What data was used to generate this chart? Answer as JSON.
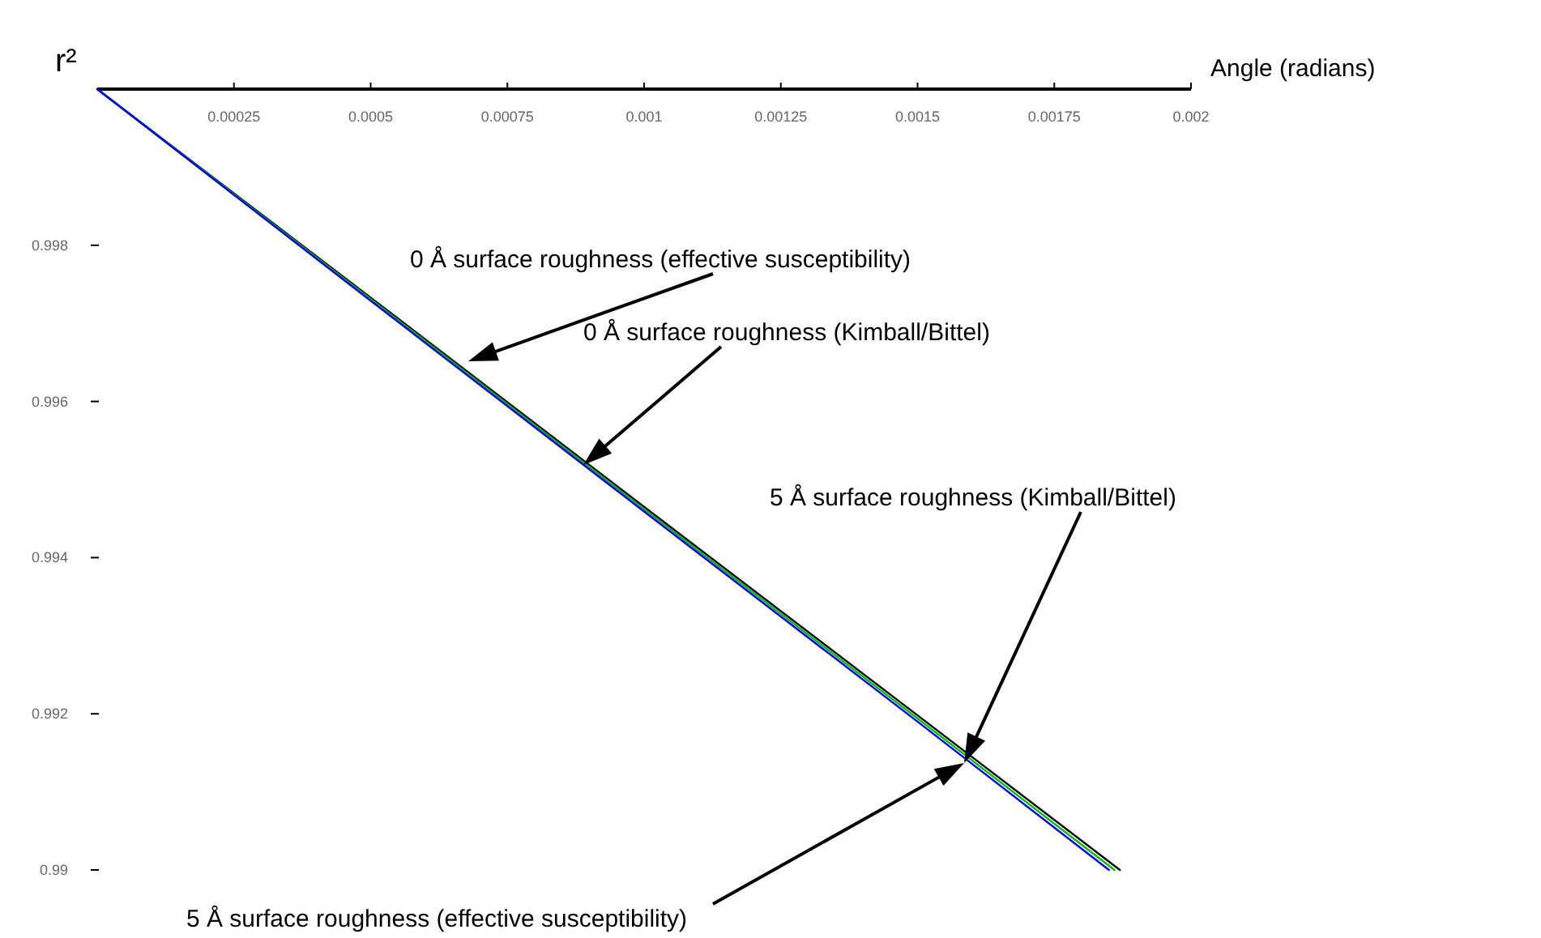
{
  "chart_data": {
    "type": "line",
    "xlabel": "Angle (radians)",
    "ylabel": "r²",
    "xlim": [
      0,
      0.002
    ],
    "xticks": [
      0.00025,
      0.0005,
      0.00075,
      0.001,
      0.00125,
      0.0015,
      0.00175,
      0.002
    ],
    "ylim": [
      0.99,
      1
    ],
    "yticks": [
      0.99,
      0.992,
      0.994,
      0.996,
      0.998
    ],
    "series": [
      {
        "color": "#000000",
        "x": [
          0,
          0.0005,
          0.001,
          0.0015,
          0.00187
        ],
        "values": [
          1,
          0.99733,
          0.99465,
          0.99198,
          0.99
        ]
      },
      {
        "color": "#00c000",
        "x": [
          0,
          0.0005,
          0.001,
          0.0015,
          0.00186
        ],
        "values": [
          1,
          0.99731,
          0.99462,
          0.99194,
          0.99
        ]
      },
      {
        "color": "#0000ff",
        "x": [
          0,
          0.0005,
          0.001,
          0.0015,
          0.00185
        ],
        "values": [
          1,
          0.99729,
          0.99459,
          0.9919,
          0.99
        ]
      }
    ],
    "annotations": [
      "0 Å surface roughness (effective susceptibility)",
      "0 Å surface roughness (Kimball/Bittel)",
      "5 Å surface roughness (Kimball/Bittel)",
      "5 Å surface roughness (effective susceptibility)"
    ]
  }
}
